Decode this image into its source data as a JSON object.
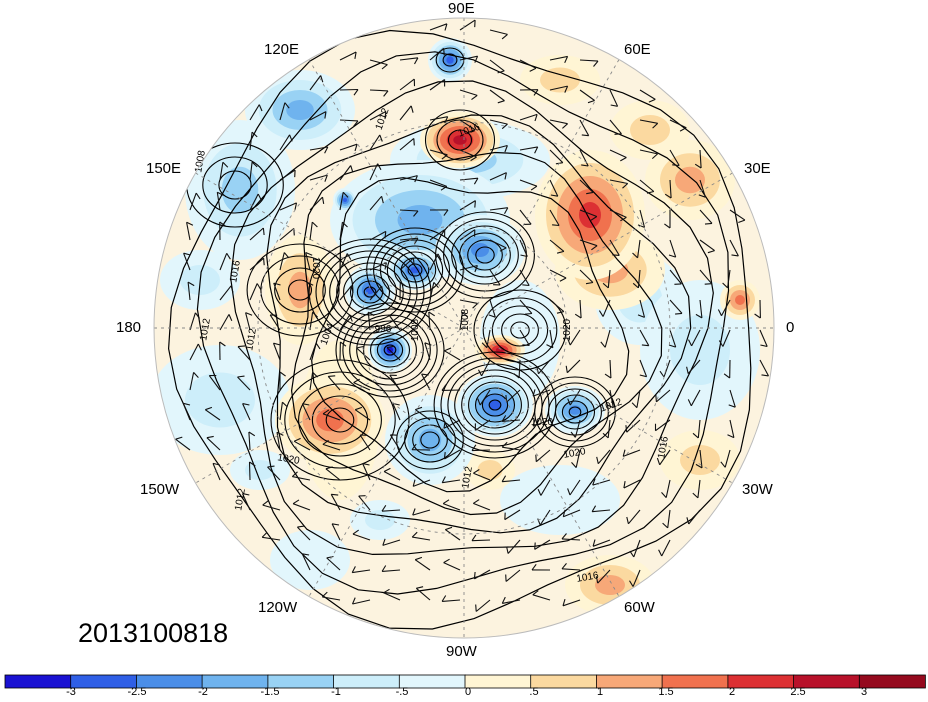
{
  "map": {
    "timestamp": "2013100818",
    "projection": "north polar stereographic",
    "longitude_labels": [
      "90E",
      "60E",
      "30E",
      "0",
      "30W",
      "60W",
      "90W",
      "120W",
      "150W",
      "180",
      "150E",
      "120E"
    ],
    "contour_labels": [
      "1016",
      "1012",
      "1008",
      "1016",
      "1020",
      "1012",
      "1004",
      "996",
      "1008",
      "1008",
      "1020",
      "1012",
      "1020",
      "1016",
      "1020",
      "1020",
      "1012",
      "1012",
      "1016",
      "1012"
    ]
  },
  "colorbar": {
    "tick_labels": [
      "-3",
      "-2.5",
      "-2",
      "-1.5",
      "-1",
      "-.5",
      "0",
      ".5",
      "1",
      "1.5",
      "2",
      "2.5",
      "3"
    ],
    "colors": [
      "#1a12d2",
      "#2f5fe6",
      "#4b8ee8",
      "#6fb3ee",
      "#99d2f4",
      "#cdeefa",
      "#e2f6fc",
      "#fff5d4",
      "#fbd9a0",
      "#f7a878",
      "#f0714e",
      "#dc3033",
      "#b8112a",
      "#950a1e"
    ]
  }
}
